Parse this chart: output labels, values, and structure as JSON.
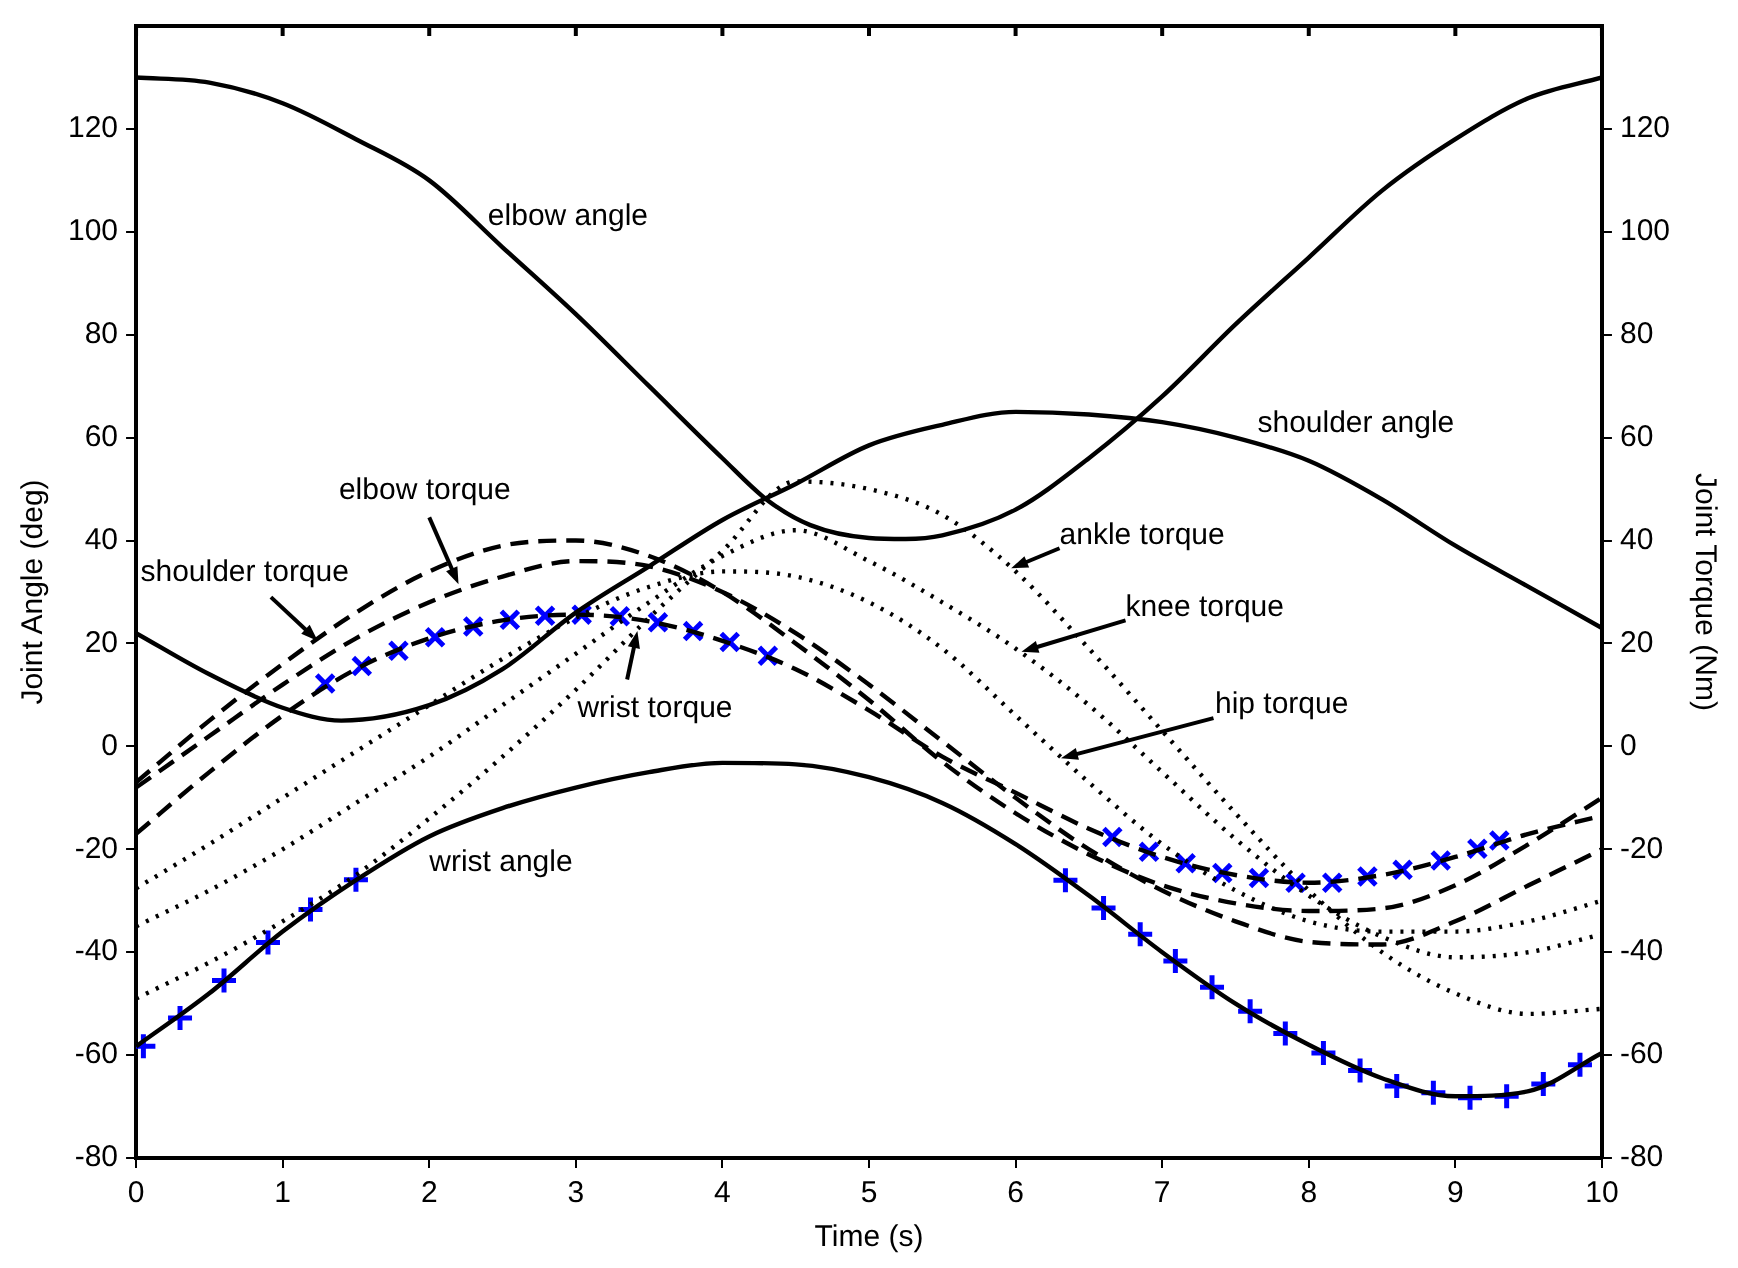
{
  "chart_data": {
    "type": "line",
    "xlabel": "Time (s)",
    "ylabel": "Joint Angle (deg)",
    "y2label": "Joint Torque (Nm)",
    "xlim": [
      0,
      10
    ],
    "xticks": [
      0,
      1,
      2,
      3,
      4,
      5,
      6,
      7,
      8,
      9,
      10
    ],
    "ylim": [
      -80,
      140
    ],
    "yticks": [
      -80,
      -60,
      -40,
      -20,
      0,
      20,
      40,
      60,
      80,
      100,
      120
    ],
    "y2lim": [
      -80,
      140
    ],
    "y2ticks": [
      -80,
      -60,
      -40,
      -20,
      0,
      20,
      40,
      60,
      80,
      100,
      120
    ],
    "grid": false,
    "legend": false,
    "marker": "none",
    "annotations": [
      {
        "text": "shoulder torque",
        "x": 1.24,
        "y": 20.5
      },
      {
        "text": "elbow torque",
        "x": 2.2,
        "y": 31.5
      },
      {
        "text": "wrist torque",
        "x": 3.42,
        "y": 22.4
      },
      {
        "text": "hip torque",
        "x": 6.31,
        "y": -2.3
      },
      {
        "text": "knee torque",
        "x": 6.04,
        "y": 18.4
      },
      {
        "text": "ankle torque",
        "x": 5.97,
        "y": 34.6
      }
    ],
    "series": [
      {
        "name": "elbow angle",
        "color": "#000000",
        "line_style": "solid",
        "x": [
          0,
          0.5,
          1,
          1.5,
          2,
          2.5,
          3,
          3.5,
          4,
          4.3,
          4.6,
          5,
          5.25,
          5.5,
          6,
          6.5,
          7,
          7.5,
          8,
          8.5,
          9,
          9.5,
          10
        ],
        "values": [
          130,
          129,
          125,
          118,
          110,
          97,
          84,
          70,
          56,
          48,
          43,
          40.5,
          40.3,
          41,
          46,
          56,
          68,
          82,
          95,
          108,
          118,
          126,
          130
        ]
      },
      {
        "name": "shoulder angle",
        "color": "#000000",
        "line_style": "solid",
        "x": [
          0,
          0.5,
          1,
          1.4,
          2,
          2.5,
          3,
          3.5,
          4,
          4.5,
          5,
          5.5,
          6,
          6.5,
          7,
          7.5,
          8,
          8.5,
          9,
          9.5,
          10
        ],
        "values": [
          22,
          14,
          7.5,
          5,
          8,
          15,
          26,
          35,
          44,
          51,
          58.5,
          62.5,
          65,
          64.5,
          63,
          60,
          55.5,
          48,
          39,
          31,
          23
        ]
      },
      {
        "name": "wrist angle",
        "color": "#000000",
        "line_style": "solid",
        "x": [
          0,
          0.5,
          1,
          1.5,
          2,
          2.5,
          3,
          3.5,
          4,
          4.5,
          5,
          5.5,
          6,
          6.5,
          7,
          7.5,
          8,
          8.5,
          9,
          9.5,
          10
        ],
        "values": [
          -58.3,
          -48,
          -36,
          -26,
          -17.5,
          -12,
          -8,
          -5,
          -3.2,
          -3.5,
          -6,
          -11,
          -19,
          -29,
          -40,
          -50,
          -58,
          -64.5,
          -68,
          -67,
          -59.6
        ]
      },
      {
        "color": "#000000",
        "line_style": "dashed",
        "x": [
          0,
          0.5,
          1,
          1.5,
          2,
          2.5,
          3,
          3.5,
          4,
          4.5,
          5,
          5.5,
          6,
          6.5,
          7,
          7.5,
          8,
          8.5,
          9,
          9.5,
          10
        ],
        "values": [
          -7,
          5,
          16,
          26,
          34,
          39,
          40,
          37,
          30,
          20,
          9,
          -3,
          -13,
          -21,
          -27,
          -30.5,
          -32,
          -31.5,
          -27,
          -19,
          -10
        ]
      },
      {
        "color": "#000000",
        "line_style": "dashed",
        "x": [
          0,
          0.5,
          1,
          1.5,
          2,
          2.5,
          3,
          3.5,
          4,
          4.5,
          5,
          5.5,
          6,
          6.5,
          7,
          7.5,
          8,
          8.5,
          9,
          9.5,
          10
        ],
        "values": [
          -8,
          2,
          12,
          21,
          28,
          33,
          36,
          35,
          30,
          22,
          12,
          1,
          -10,
          -20,
          -28,
          -34,
          -38,
          -38.5,
          -34,
          -27,
          -20
        ]
      },
      {
        "color": "#000000",
        "line_style": "dashed",
        "x": [
          0,
          0.5,
          1,
          1.5,
          2,
          2.5,
          3,
          3.5,
          4,
          4.5,
          5,
          5.5,
          6,
          6.5,
          7,
          7.5,
          8,
          8.5,
          9,
          9.5,
          10
        ],
        "values": [
          -17,
          -5,
          6,
          15,
          21,
          24.5,
          25.6,
          24.3,
          20.5,
          15,
          7,
          -2,
          -9,
          -16,
          -21.5,
          -25,
          -26.5,
          -25,
          -21.5,
          -17,
          -13.5
        ]
      },
      {
        "color": "#000000",
        "line_style": "dotted",
        "x": [
          0,
          0.5,
          1,
          1.5,
          2,
          2.5,
          3,
          3.5,
          4,
          4.5,
          5,
          5.5,
          6,
          6.5,
          7,
          7.5,
          8,
          8.5,
          9,
          9.5,
          10
        ],
        "values": [
          -27.6,
          -19,
          -10,
          -1,
          8,
          17,
          25,
          31,
          34,
          33,
          28,
          19,
          6,
          -7,
          -19,
          -28,
          -34,
          -36,
          -36,
          -34,
          -30
        ]
      },
      {
        "color": "#000000",
        "line_style": "dotted",
        "x": [
          0,
          0.5,
          1,
          1.5,
          2,
          2.5,
          3,
          3.5,
          4,
          4.5,
          5,
          5.5,
          6,
          6.5,
          7,
          7.5,
          8,
          8.5,
          9,
          9.5,
          10
        ],
        "values": [
          -35,
          -28,
          -20,
          -11,
          -2,
          8,
          18,
          28,
          37,
          42,
          36,
          28,
          19,
          8,
          -5,
          -18,
          -29,
          -37,
          -41,
          -40,
          -36.5
        ]
      },
      {
        "color": "#000000",
        "line_style": "dotted",
        "x": [
          0,
          0.5,
          1,
          1.5,
          2,
          2.5,
          3,
          3.5,
          4,
          4.5,
          5,
          5.5,
          6,
          6.5,
          7,
          7.5,
          8,
          8.5,
          9,
          9.5,
          10
        ],
        "values": [
          -49,
          -42,
          -34,
          -25,
          -14,
          -2,
          11,
          25,
          38,
          51.5,
          50,
          45,
          34,
          19,
          3,
          -13,
          -28,
          -40,
          -48,
          -52,
          -51
        ]
      },
      {
        "type": "scatter",
        "color": "#0000ff",
        "marker": "cross",
        "x": [
          1.29,
          1.54,
          1.79,
          2.04,
          2.3,
          2.55,
          2.79,
          3.04,
          3.3,
          3.56,
          3.8,
          4.05,
          4.31,
          6.66,
          6.91,
          7.16,
          7.41,
          7.66,
          7.91,
          8.16,
          8.4,
          8.64,
          8.9,
          9.15,
          9.3
        ],
        "values": [
          12.2,
          15.6,
          18.6,
          21.2,
          23.3,
          24.6,
          25.4,
          25.6,
          25.3,
          24.1,
          22.4,
          20.3,
          17.6,
          -17.6,
          -20.5,
          -22.7,
          -24.6,
          -25.6,
          -26.5,
          -26.5,
          -25.3,
          -24,
          -22.2,
          -19.9,
          -18.3
        ]
      },
      {
        "type": "scatter",
        "color": "#0000ff",
        "marker": "plus",
        "x": [
          0.05,
          0.3,
          0.6,
          0.9,
          1.19,
          1.5,
          6.34,
          6.6,
          6.85,
          7.09,
          7.34,
          7.6,
          7.84,
          8.1,
          8.35,
          8.6,
          8.85,
          9.1,
          9.35,
          9.6,
          9.85
        ],
        "values": [
          -58.3,
          -52.8,
          -45.5,
          -38.1,
          -31.7,
          -25.9,
          -26,
          -31.4,
          -36.5,
          -41.7,
          -46.8,
          -51.5,
          -55.8,
          -59.6,
          -63,
          -66,
          -67.3,
          -68.3,
          -68,
          -65.6,
          -61.9
        ]
      }
    ]
  }
}
